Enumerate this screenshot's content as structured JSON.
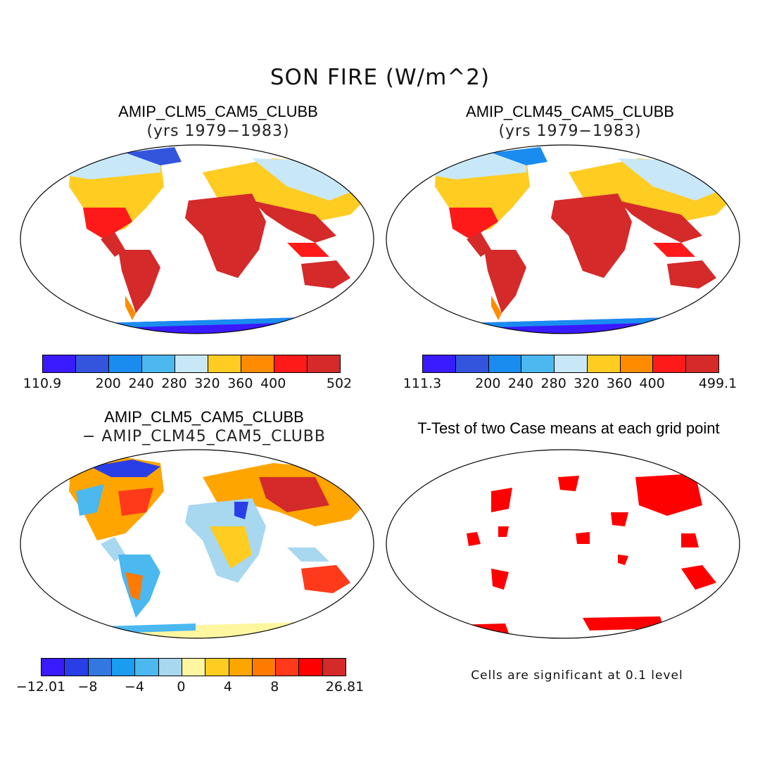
{
  "title": "SON FIRE (W/m^2)",
  "panels": [
    {
      "name": "AMIP_CLM5_CAM5_CLUBB",
      "subtitle": "(yrs 1979−1983)",
      "colorbar": {
        "colors": [
          "#3a1aff",
          "#3355dd",
          "#1a8cf0",
          "#4bb8f0",
          "#c8e8f7",
          "#ffcc22",
          "#ff8c00",
          "#ff1a1a",
          "#d42a2a"
        ],
        "labels": [
          "110.9",
          "200",
          "240",
          "280",
          "320",
          "360",
          "400",
          "502"
        ]
      }
    },
    {
      "name": "AMIP_CLM45_CAM5_CLUBB",
      "subtitle": "(yrs 1979−1983)",
      "colorbar": {
        "colors": [
          "#3a1aff",
          "#3355dd",
          "#1a8cf0",
          "#4bb8f0",
          "#c8e8f7",
          "#ffcc22",
          "#ff8c00",
          "#ff1a1a",
          "#d42a2a"
        ],
        "labels": [
          "111.3",
          "200",
          "240",
          "280",
          "320",
          "360",
          "400",
          "499.1"
        ]
      }
    },
    {
      "name": "AMIP_CLM5_CAM5_CLUBB",
      "subtitle": "− AMIP_CLM45_CAM5_CLUBB",
      "colorbar": {
        "colors": [
          "#3a1aff",
          "#2a3ee8",
          "#3377e0",
          "#1a9cf0",
          "#4bb8f0",
          "#a8d8f0",
          "#fff6a0",
          "#ffcc22",
          "#ffa500",
          "#ff7a00",
          "#ff3a1a",
          "#ff0000",
          "#d42a2a"
        ],
        "labels": [
          "−12.01",
          "−8",
          "−4",
          "0",
          "4",
          "8",
          "26.81"
        ]
      }
    },
    {
      "name": "T-Test of two Case means at each grid point",
      "note": "Cells are significant at 0.1 level"
    }
  ]
}
